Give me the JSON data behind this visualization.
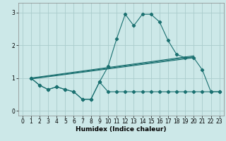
{
  "xlabel": "Humidex (Indice chaleur)",
  "bg_color": "#cce8e8",
  "grid_color": "#aacccc",
  "line_color": "#1a7070",
  "xlim": [
    -0.5,
    23.5
  ],
  "ylim": [
    -0.15,
    3.3
  ],
  "yticks": [
    0,
    1,
    2,
    3
  ],
  "xticks": [
    0,
    1,
    2,
    3,
    4,
    5,
    6,
    7,
    8,
    9,
    10,
    11,
    12,
    13,
    14,
    15,
    16,
    17,
    18,
    19,
    20,
    21,
    22,
    23
  ],
  "line_flat_x": [
    1,
    2,
    3,
    4,
    5,
    6,
    7,
    8,
    9,
    10,
    11,
    12,
    13,
    14,
    15,
    16,
    17,
    18,
    19,
    20,
    21,
    22,
    23
  ],
  "line_flat_y": [
    1.0,
    0.78,
    0.65,
    0.73,
    0.65,
    0.58,
    0.35,
    0.35,
    0.88,
    0.58,
    0.58,
    0.58,
    0.58,
    0.58,
    0.58,
    0.58,
    0.58,
    0.58,
    0.58,
    0.58,
    0.58,
    0.58,
    0.58
  ],
  "line_peak_x": [
    1,
    2,
    3,
    4,
    5,
    6,
    7,
    8,
    9,
    10,
    11,
    12,
    13,
    14,
    15,
    16,
    17,
    18,
    19,
    20,
    21,
    22,
    23
  ],
  "line_peak_y": [
    1.0,
    0.78,
    0.65,
    0.73,
    0.65,
    0.58,
    0.35,
    0.35,
    0.88,
    1.35,
    2.2,
    2.95,
    2.6,
    2.95,
    2.95,
    2.72,
    2.15,
    1.72,
    1.62,
    1.62,
    1.25,
    0.58,
    0.58
  ],
  "trend1_x": [
    1,
    20
  ],
  "trend1_y": [
    0.97,
    1.62
  ],
  "trend2_x": [
    1,
    20
  ],
  "trend2_y": [
    1.0,
    1.68
  ],
  "trend3_x": [
    1,
    20
  ],
  "trend3_y": [
    0.985,
    1.65
  ]
}
